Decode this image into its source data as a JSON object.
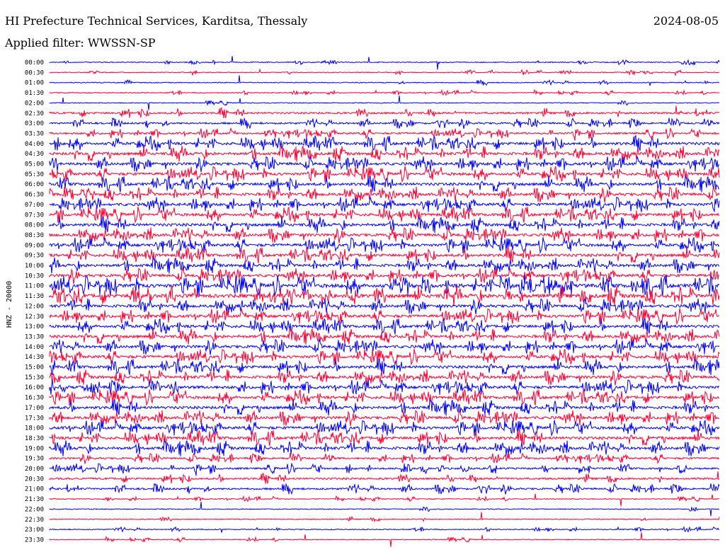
{
  "header": {
    "station_title": "HI Prefecture Technical Services, Karditsa, Thessaly",
    "date": "2024-08-05",
    "filter_label": "Applied filter: WWSSN-SP"
  },
  "chart_data": {
    "type": "line",
    "title": "HI Prefecture Technical Services, Karditsa, Thessaly",
    "ylabel": "HNZ - 20000",
    "xlabel": "",
    "grid": false,
    "colors": {
      "even": "#0000ff",
      "odd": "#ff0033"
    },
    "rows": [
      "00:00",
      "00:30",
      "01:00",
      "01:30",
      "02:00",
      "02:30",
      "03:00",
      "03:30",
      "04:00",
      "04:30",
      "05:00",
      "05:30",
      "06:00",
      "06:30",
      "07:00",
      "07:30",
      "08:00",
      "08:30",
      "09:00",
      "09:30",
      "10:00",
      "10:30",
      "11:00",
      "11:30",
      "12:00",
      "12:30",
      "13:00",
      "13:30",
      "14:00",
      "14:30",
      "15:00",
      "15:30",
      "16:00",
      "16:30",
      "17:00",
      "17:30",
      "18:00",
      "18:30",
      "19:00",
      "19:30",
      "20:00",
      "20:30",
      "21:00",
      "21:30",
      "22:00",
      "22:30",
      "23:00",
      "23:30"
    ],
    "noise_level": [
      1,
      1,
      1,
      1,
      1,
      2,
      2,
      2,
      3,
      3,
      3,
      3,
      3,
      3,
      3,
      3,
      3,
      3,
      3,
      3,
      3,
      3,
      4,
      4,
      3,
      3,
      3,
      3,
      3,
      3,
      3,
      3,
      3,
      3,
      3,
      3,
      3,
      3,
      3,
      2,
      2,
      2,
      2,
      1,
      1,
      1,
      1,
      1
    ]
  }
}
